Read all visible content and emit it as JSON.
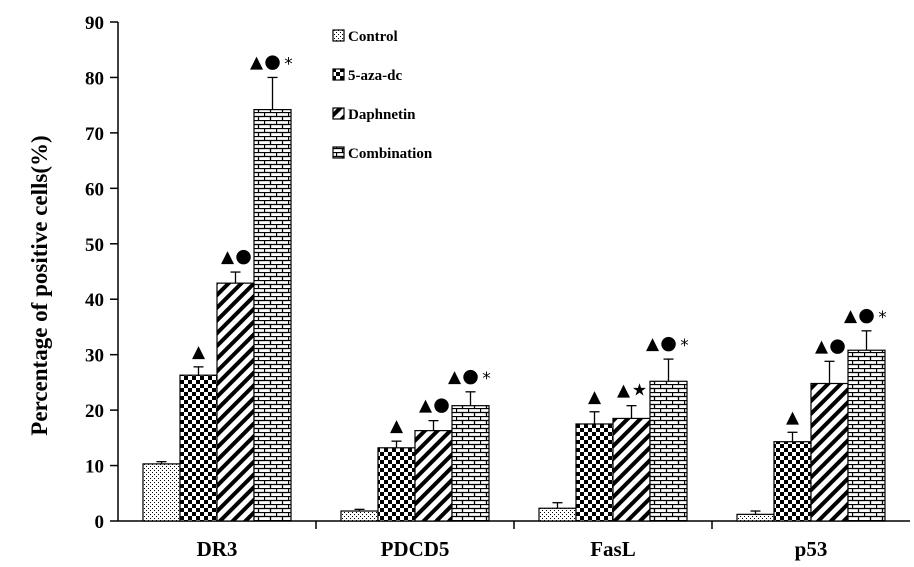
{
  "chart_data": {
    "type": "bar",
    "ylabel": "Percentage of positive cells(%)",
    "xlabel": "",
    "ylim": [
      0,
      90
    ],
    "ytick_step": 10,
    "yticks": [
      "0",
      "10",
      "20",
      "30",
      "40",
      "50",
      "60",
      "70",
      "80",
      "90"
    ],
    "categories": [
      "DR3",
      "PDCD5",
      "FasL",
      "p53"
    ],
    "legend_position": "top-center",
    "grid": false,
    "series": [
      {
        "name": "Control",
        "pattern": "dots",
        "values": [
          10.3,
          1.8,
          2.3,
          1.2
        ],
        "errors": [
          0.4,
          0.3,
          1.0,
          0.6
        ],
        "markers": [
          "",
          "",
          "",
          ""
        ]
      },
      {
        "name": "5-aza-dc",
        "pattern": "checker",
        "values": [
          26.3,
          13.2,
          17.5,
          14.3
        ],
        "errors": [
          1.5,
          1.2,
          2.2,
          1.7
        ],
        "markers": [
          "▲",
          "▲",
          "▲",
          "▲"
        ]
      },
      {
        "name": "Daphnetin",
        "pattern": "diagonal",
        "values": [
          42.9,
          16.3,
          18.5,
          24.8
        ],
        "errors": [
          2.0,
          1.8,
          2.3,
          4.0
        ],
        "markers": [
          "▲●",
          "▲●",
          "▲★",
          "▲●"
        ]
      },
      {
        "name": "Combination",
        "pattern": "brick",
        "values": [
          74.2,
          20.8,
          25.2,
          30.8
        ],
        "errors": [
          5.8,
          2.5,
          4.0,
          3.5
        ],
        "markers": [
          "▲●*",
          "▲●*",
          "▲●*",
          "▲●*"
        ]
      }
    ]
  }
}
